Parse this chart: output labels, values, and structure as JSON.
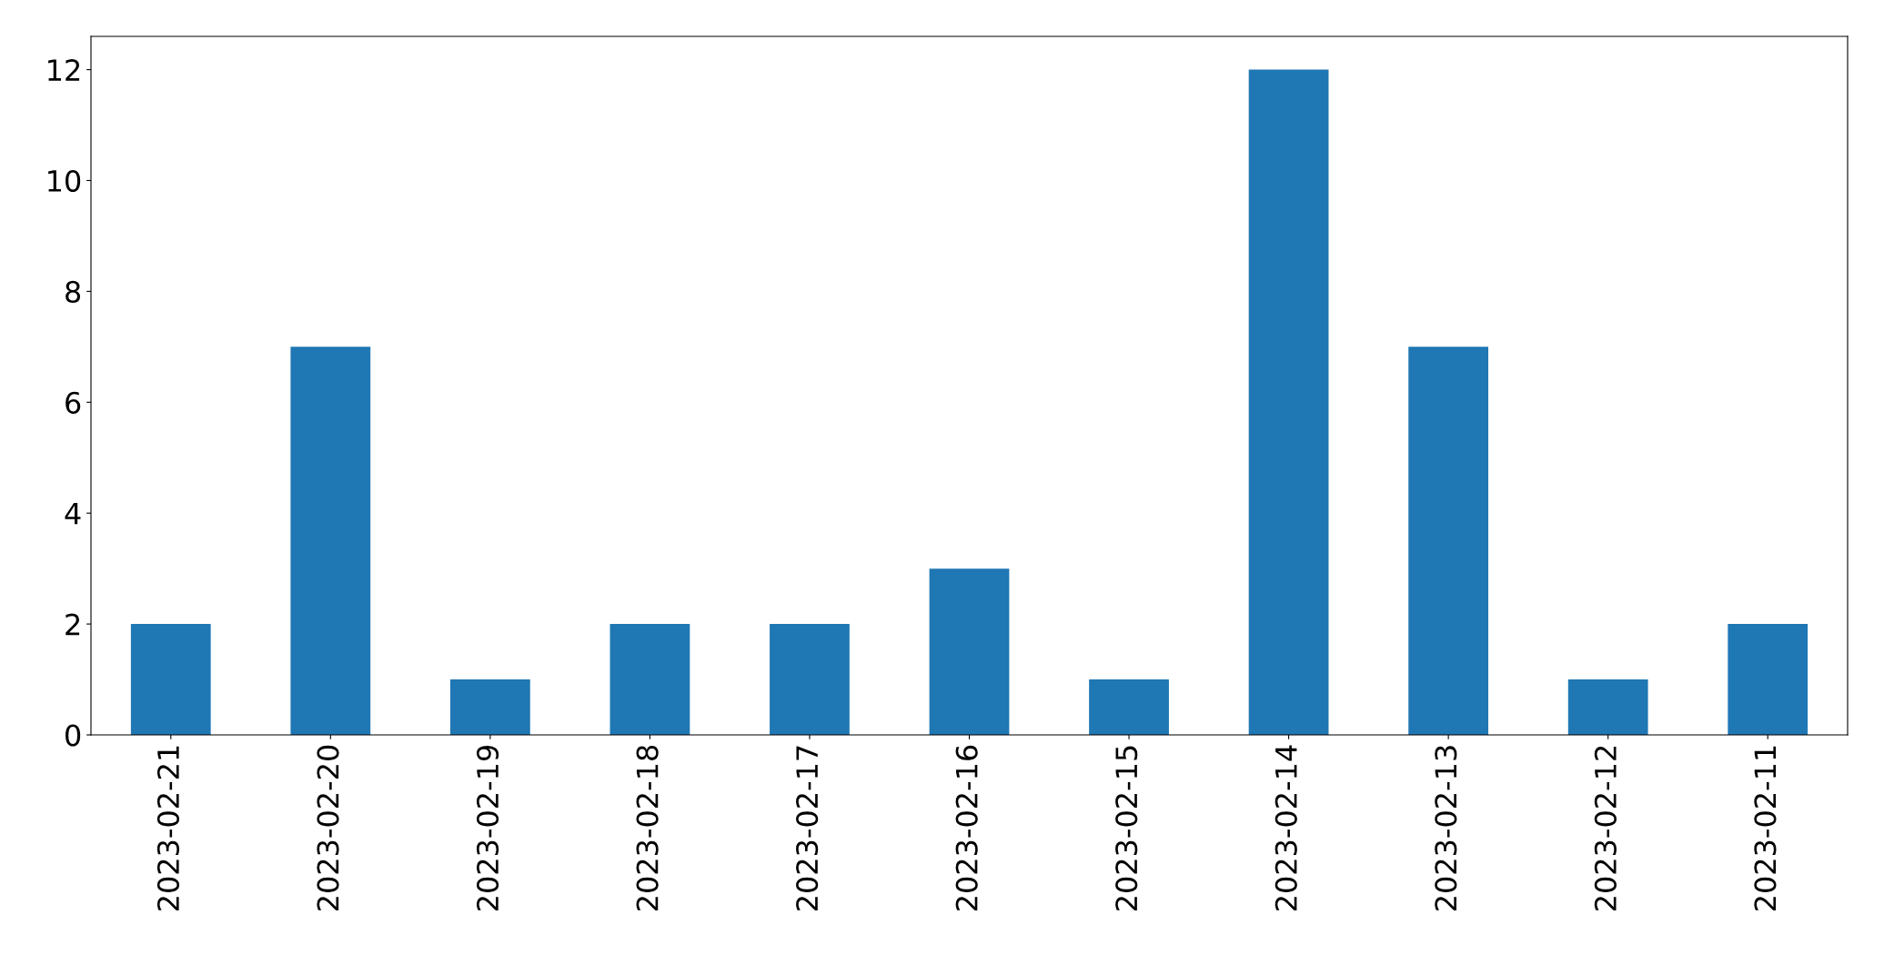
{
  "chart_data": {
    "type": "bar",
    "categories": [
      "2023-02-21",
      "2023-02-20",
      "2023-02-19",
      "2023-02-18",
      "2023-02-17",
      "2023-02-16",
      "2023-02-15",
      "2023-02-14",
      "2023-02-13",
      "2023-02-12",
      "2023-02-11"
    ],
    "values": [
      2,
      7,
      1,
      2,
      2,
      3,
      1,
      12,
      7,
      1,
      2
    ],
    "color": "#1f77b4",
    "ylim": [
      0,
      12.6
    ],
    "yticks": [
      0,
      2,
      4,
      6,
      8,
      10,
      12
    ],
    "grid": false,
    "legend": false
  }
}
